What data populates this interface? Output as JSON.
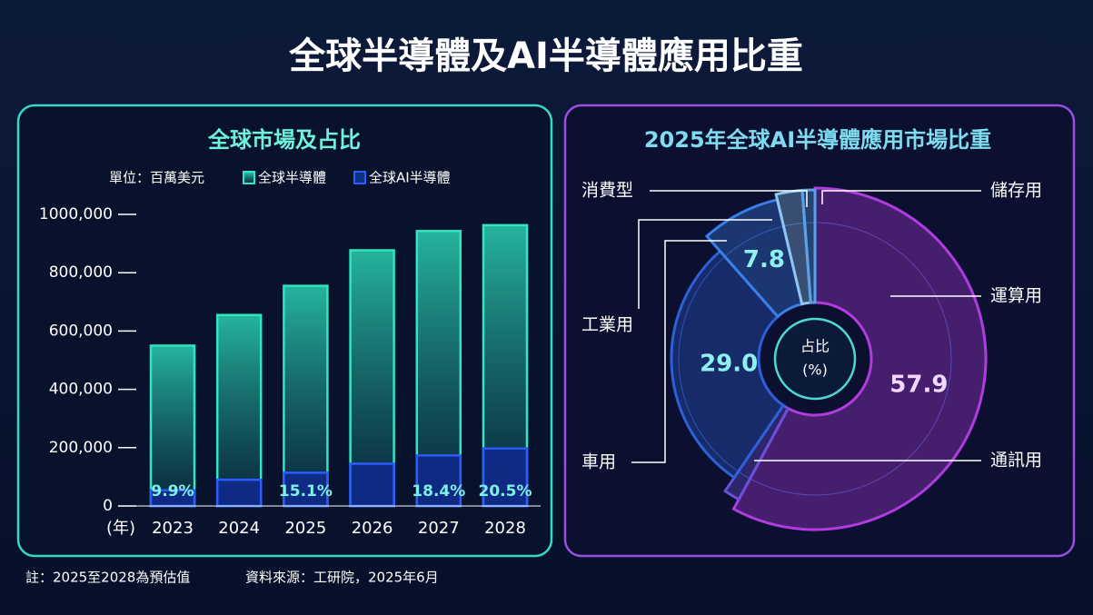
{
  "title": "全球半導體及AI半導體應用比重",
  "notes": [
    "註：2025至2028為預估值",
    "資料來源：工研院，2025年6月"
  ],
  "chart_data": [
    {
      "type": "bar",
      "title": "全球市場及占比",
      "unit": "單位：百萬美元",
      "x_label": "(年)",
      "categories": [
        "2023",
        "2024",
        "2025",
        "2026",
        "2027",
        "2028"
      ],
      "series": [
        {
          "name": "全球半導體",
          "color": "#2ee6c0",
          "values": [
            550000,
            655000,
            755000,
            877000,
            943000,
            963000
          ]
        },
        {
          "name": "全球AI半導體",
          "color": "#2a5cff",
          "values": [
            54000,
            90000,
            114000,
            145000,
            173500,
            197400
          ]
        }
      ],
      "shares": {
        "values": [
          9.9,
          null,
          15.1,
          null,
          18.4,
          20.5
        ],
        "value_labels": [
          "9.9%",
          null,
          "15.1%",
          null,
          "18.4%",
          "20.5%"
        ]
      },
      "ylim": [
        0,
        1000000
      ],
      "yticks": [
        0,
        {
          "value": 200000,
          "label": "200,000"
        },
        {
          "value": 400000,
          "label": "400,000"
        },
        {
          "value": 600000,
          "label": "600,000"
        },
        {
          "value": 800000,
          "label": "800,000"
        },
        {
          "value": 1000000,
          "label": "1000,000"
        }
      ]
    },
    {
      "type": "pie",
      "title": "2025年全球AI半導體應用市場比重",
      "center_label": "占比",
      "center_unit": "(%)",
      "categories": [
        "運算用",
        "通訊用",
        "車用",
        "工業用",
        "消費型",
        "儲存用"
      ],
      "values": [
        57.9,
        1.6,
        29.0,
        7.8,
        2.5,
        1.2
      ],
      "value_labels": [
        "57.9",
        null,
        "29.0",
        "7.8",
        null,
        null
      ],
      "colors": [
        "#b13be0",
        "#6a4fd8",
        "#2f5fd6",
        "#3a7ee8",
        "#8fc4f0",
        "#5aa0e8"
      ]
    }
  ]
}
